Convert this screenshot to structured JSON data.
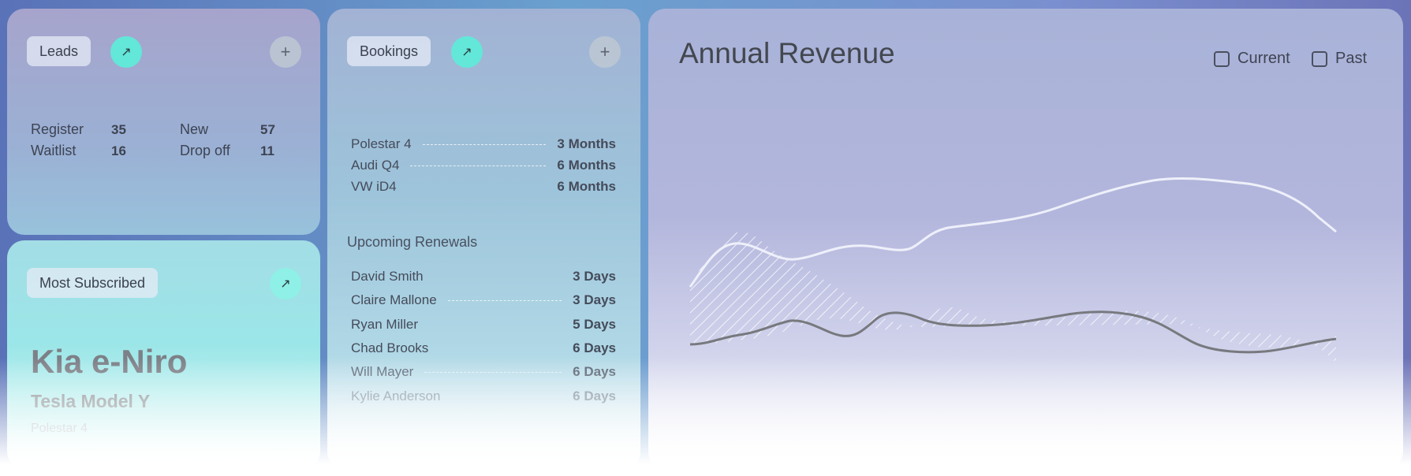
{
  "leads": {
    "title": "Leads",
    "stats": [
      {
        "label": "Register",
        "value": "35"
      },
      {
        "label": "Waitlist",
        "value": "16"
      },
      {
        "label": "New",
        "value": "57"
      },
      {
        "label": "Drop off",
        "value": "11"
      }
    ]
  },
  "subscribed": {
    "title": "Most Subscribed",
    "models": [
      "Kia e-Niro",
      "Tesla Model Y",
      "Polestar 4"
    ]
  },
  "bookings": {
    "title": "Bookings",
    "items": [
      {
        "name": "Polestar 4",
        "value": "3 Months"
      },
      {
        "name": "Audi Q4",
        "value": "6 Months"
      },
      {
        "name": "VW iD4",
        "value": "6 Months"
      }
    ],
    "renewals_title": "Upcoming Renewals",
    "renewals": [
      {
        "name": "David Smith",
        "value": "3 Days"
      },
      {
        "name": "Claire Mallone",
        "value": "3 Days"
      },
      {
        "name": "Ryan Miller",
        "value": "5 Days"
      },
      {
        "name": "Chad Brooks",
        "value": "6 Days"
      },
      {
        "name": "Will Mayer",
        "value": "6 Days"
      },
      {
        "name": "Kylie Anderson",
        "value": "6 Days"
      }
    ]
  },
  "revenue": {
    "title": "Annual Revenue",
    "legend": [
      "Current",
      "Past"
    ]
  },
  "icons": {
    "arrow": "↗",
    "plus": "+"
  },
  "colors": {
    "accent_teal": "#63e7d8",
    "current_line": "#eef0fa",
    "past_line": "#77797e"
  }
}
